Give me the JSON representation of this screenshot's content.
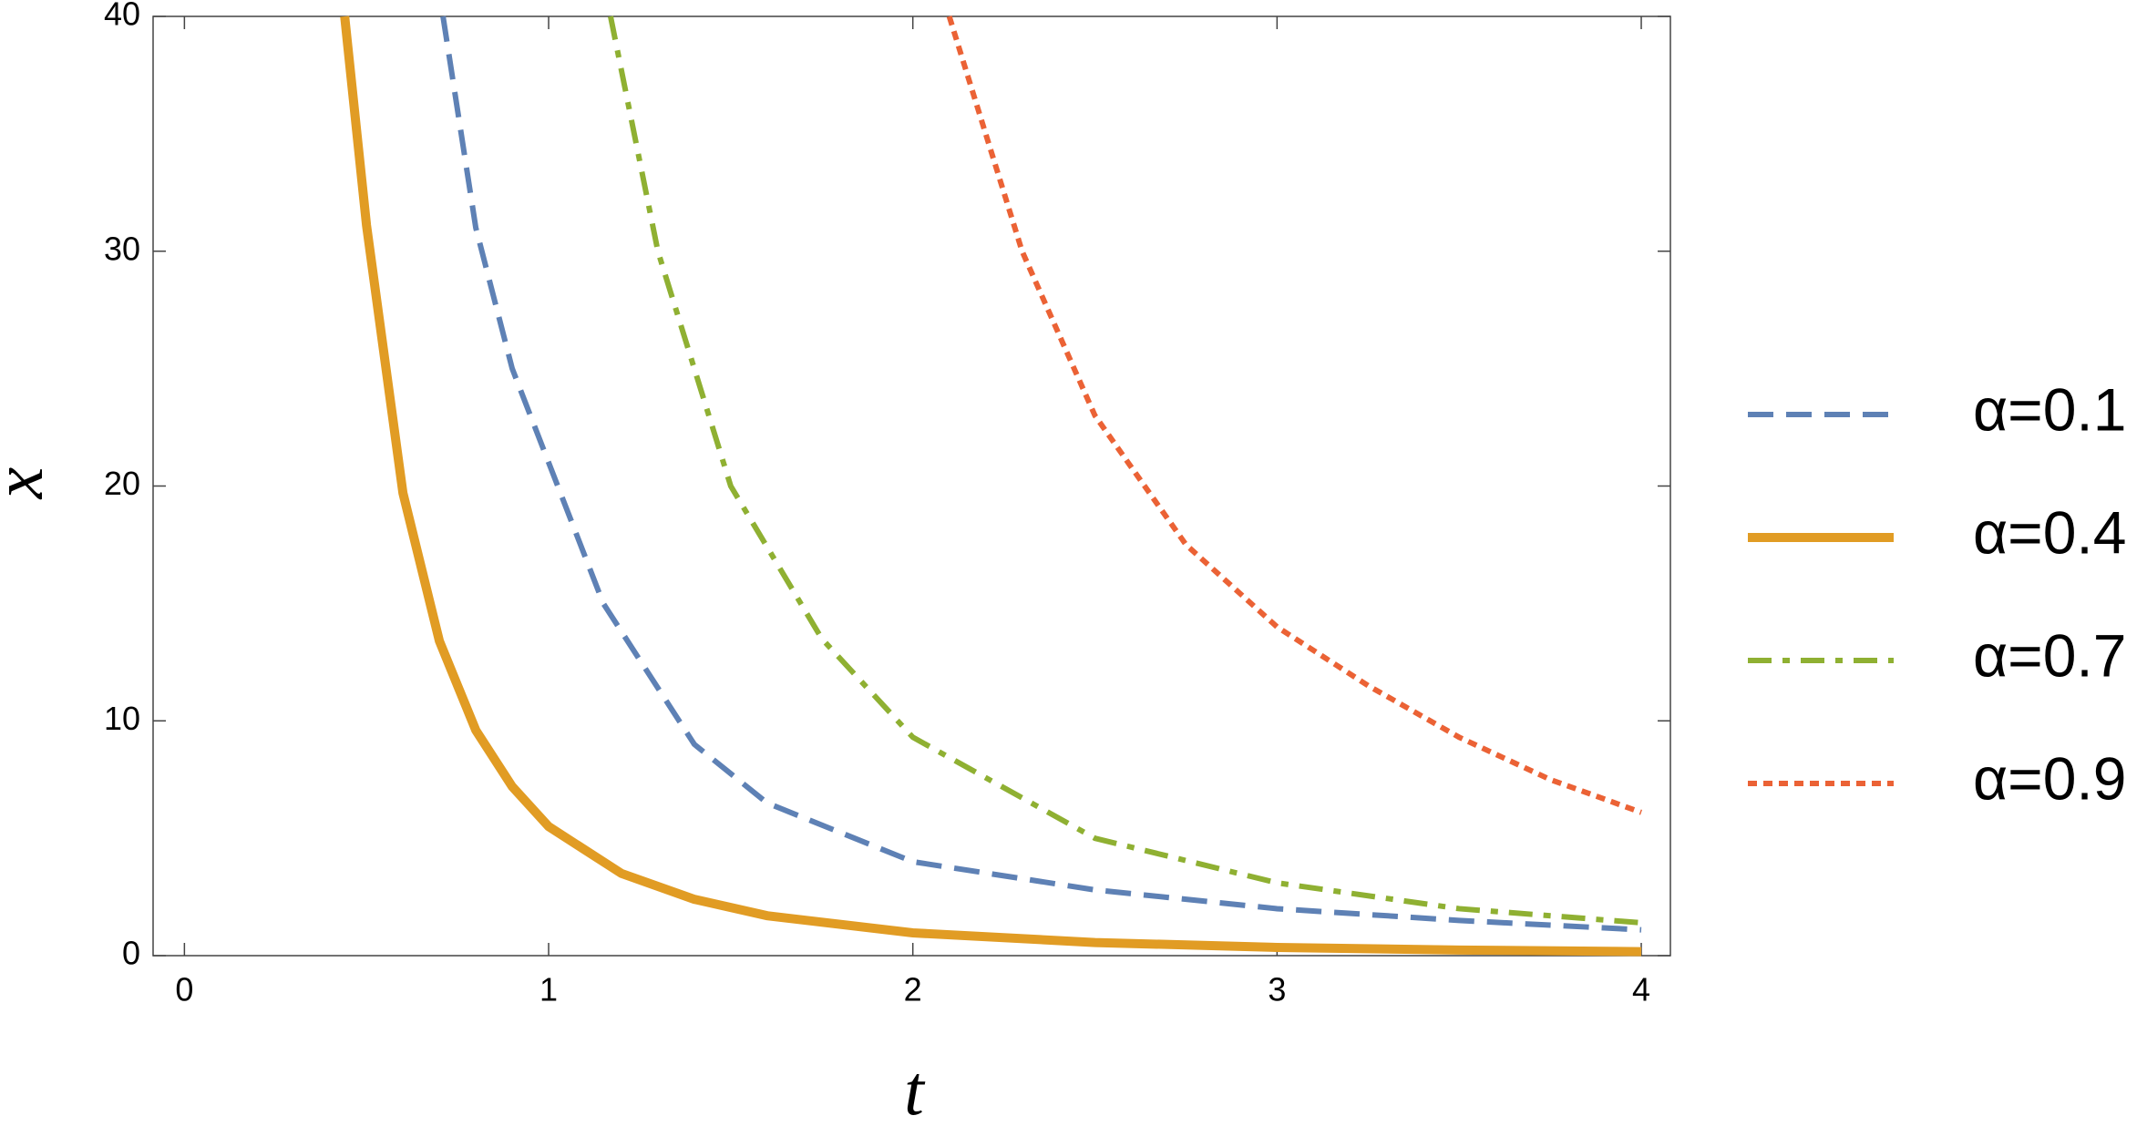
{
  "chart_data": {
    "type": "line",
    "x_label": "t",
    "y_label": "x",
    "xlim": [
      -0.086,
      4.08
    ],
    "ylim": [
      0,
      40
    ],
    "xticks": [
      0,
      1,
      2,
      3,
      4
    ],
    "yticks": [
      0,
      10,
      20,
      30,
      40
    ],
    "legend": "right",
    "series": [
      {
        "name": "α=0.1",
        "color": "#5e81b5",
        "dash": "dashed",
        "x": [
          0.71,
          0.8,
          0.9,
          1,
          1.15,
          1.4,
          1.6,
          2,
          2.5,
          3,
          3.5,
          4
        ],
        "values": [
          40,
          31,
          25,
          21,
          15,
          9,
          6.5,
          4,
          2.8,
          2,
          1.5,
          1.1
        ]
      },
      {
        "name": "α=0.4",
        "color": "#e19c24",
        "dash": "solid",
        "x": [
          0.44,
          0.5,
          0.6,
          0.7,
          0.8,
          0.9,
          1,
          1.2,
          1.4,
          1.6,
          2,
          2.5,
          3,
          3.5,
          4
        ],
        "values": [
          40,
          31.1,
          19.7,
          13.4,
          9.6,
          7.2,
          5.5,
          3.5,
          2.4,
          1.7,
          0.97,
          0.56,
          0.35,
          0.24,
          0.17
        ]
      },
      {
        "name": "α=0.7",
        "color": "#8fb032",
        "dash": "dashdot",
        "x": [
          1.17,
          1.3,
          1.5,
          1.75,
          2,
          2.5,
          3,
          3.5,
          4
        ],
        "values": [
          40,
          30,
          20,
          13.5,
          9.3,
          5,
          3.1,
          2,
          1.4
        ]
      },
      {
        "name": "α=0.9",
        "color": "#eb6235",
        "dash": "dotted",
        "x": [
          2.1,
          2.3,
          2.5,
          2.75,
          3,
          3.25,
          3.5,
          3.75,
          4
        ],
        "values": [
          40,
          30,
          23,
          17.5,
          14,
          11.5,
          9.3,
          7.5,
          6.1
        ]
      }
    ]
  }
}
